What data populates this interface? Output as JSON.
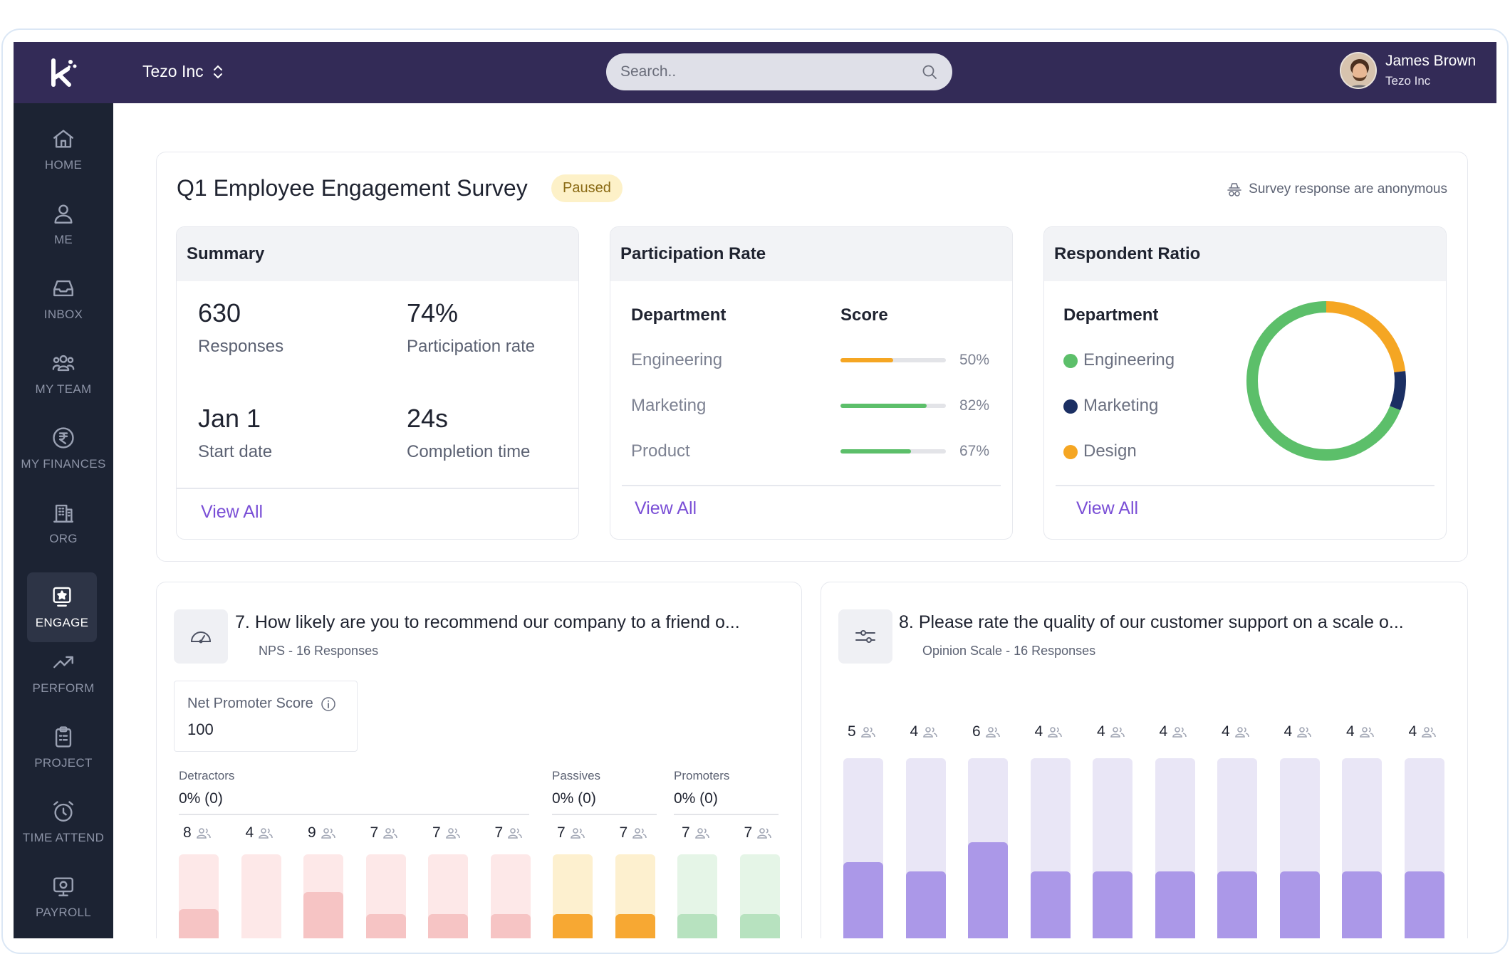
{
  "topbar": {
    "org_name": "Tezo Inc",
    "search_placeholder": "Search..",
    "user_name": "James Brown",
    "user_org": "Tezo Inc"
  },
  "sidebar": {
    "items": [
      {
        "label": "HOME",
        "icon": "home-icon"
      },
      {
        "label": "ME",
        "icon": "user-icon"
      },
      {
        "label": "INBOX",
        "icon": "inbox-icon"
      },
      {
        "label": "MY TEAM",
        "icon": "team-icon"
      },
      {
        "label": "MY FINANCES",
        "icon": "rupee-icon"
      },
      {
        "label": "ORG",
        "icon": "building-icon"
      },
      {
        "label": "ENGAGE",
        "icon": "star-badge-icon",
        "active": true
      },
      {
        "label": "PERFORM",
        "icon": "trend-up-icon"
      },
      {
        "label": "PROJECT",
        "icon": "clipboard-icon"
      },
      {
        "label": "TIME ATTEND",
        "icon": "alarm-clock-icon"
      },
      {
        "label": "PAYROLL",
        "icon": "payroll-icon"
      }
    ]
  },
  "survey": {
    "title": "Q1 Employee Engagement Survey",
    "status": "Paused",
    "anonymous_note": "Survey response are anonymous"
  },
  "summary": {
    "heading": "Summary",
    "stats": [
      {
        "value": "630",
        "label": "Responses"
      },
      {
        "value": "74%",
        "label": "Participation rate"
      },
      {
        "value": "Jan 1",
        "label": "Start date"
      },
      {
        "value": "24s",
        "label": "Completion time"
      }
    ],
    "view_all": "View All"
  },
  "participation": {
    "heading": "Participation Rate",
    "col_department": "Department",
    "col_score": "Score",
    "rows": [
      {
        "department": "Engineering",
        "score": 50,
        "score_label": "50%",
        "color": "#f5a623"
      },
      {
        "department": "Marketing",
        "score": 82,
        "score_label": "82%",
        "color": "#5cbf6a"
      },
      {
        "department": "Product",
        "score": 67,
        "score_label": "67%",
        "color": "#5cbf6a"
      }
    ],
    "view_all": "View All"
  },
  "respondent": {
    "heading": "Respondent Ratio",
    "col_department": "Department",
    "legend": [
      {
        "label": "Engineering",
        "color": "#5cbf6a",
        "share": 0.69
      },
      {
        "label": "Marketing",
        "color": "#1b2f63",
        "share": 0.08
      },
      {
        "label": "Design",
        "color": "#f5a623",
        "share": 0.23
      }
    ],
    "view_all": "View All"
  },
  "q7": {
    "number": "7.",
    "title": "How likely are you to recommend our company to a friend o...",
    "subtitle": "NPS - 16 Responses",
    "nps_label": "Net Promoter Score",
    "nps_value": "100",
    "groups": [
      {
        "label": "Detractors",
        "value": "0% (0)"
      },
      {
        "label": "Passives",
        "value": "0% (0)"
      },
      {
        "label": "Promoters",
        "value": "0% (0)"
      }
    ],
    "bars": [
      {
        "count": "8",
        "fill": 0.45,
        "track": "#fde8e8",
        "color": "#f6c4c4"
      },
      {
        "count": "4",
        "fill": 0.0,
        "track": "#fde8e8",
        "color": "#f6c4c4"
      },
      {
        "count": "9",
        "fill": 0.62,
        "track": "#fde8e8",
        "color": "#f6c4c4"
      },
      {
        "count": "7",
        "fill": 0.4,
        "track": "#fde8e8",
        "color": "#f6c4c4"
      },
      {
        "count": "7",
        "fill": 0.4,
        "track": "#fde8e8",
        "color": "#f6c4c4"
      },
      {
        "count": "7",
        "fill": 0.4,
        "track": "#fde8e8",
        "color": "#f6c4c4"
      },
      {
        "count": "7",
        "fill": 0.4,
        "track": "#fdf0cf",
        "color": "#f7a833"
      },
      {
        "count": "7",
        "fill": 0.4,
        "track": "#fdf0cf",
        "color": "#f7a833"
      },
      {
        "count": "7",
        "fill": 0.4,
        "track": "#e5f5e7",
        "color": "#b7e2bf"
      },
      {
        "count": "7",
        "fill": 0.4,
        "track": "#e5f5e7",
        "color": "#b7e2bf"
      }
    ]
  },
  "q8": {
    "number": "8.",
    "title": "Please rate the quality of our customer support on a scale o...",
    "subtitle": "Opinion Scale - 16 Responses",
    "bars": [
      {
        "count": "5",
        "fill": 0.47
      },
      {
        "count": "4",
        "fill": 0.42
      },
      {
        "count": "6",
        "fill": 0.57
      },
      {
        "count": "4",
        "fill": 0.42
      },
      {
        "count": "4",
        "fill": 0.42
      },
      {
        "count": "4",
        "fill": 0.42
      },
      {
        "count": "4",
        "fill": 0.42
      },
      {
        "count": "4",
        "fill": 0.42
      },
      {
        "count": "4",
        "fill": 0.42
      },
      {
        "count": "4",
        "fill": 0.42
      }
    ]
  }
}
